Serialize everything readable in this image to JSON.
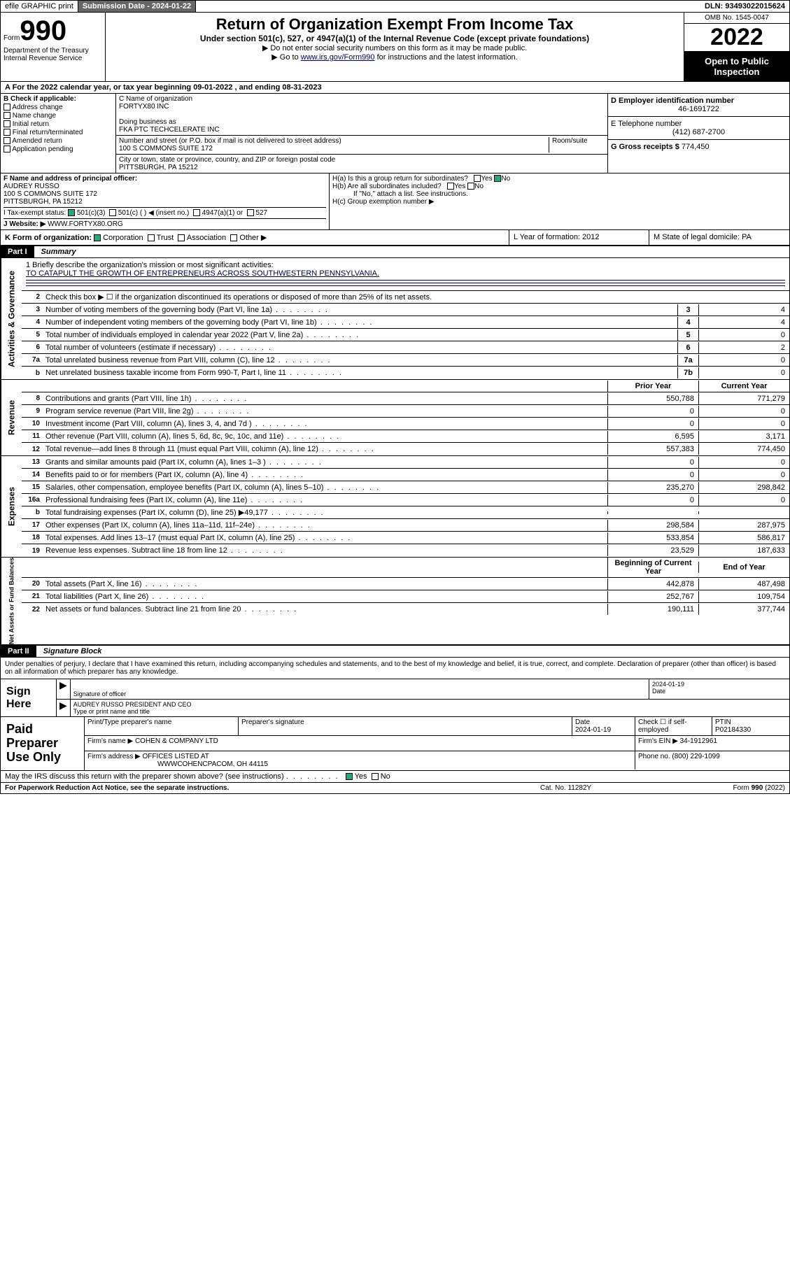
{
  "top": {
    "efile": "efile GRAPHIC print",
    "submission_label": "Submission Date - 2024-01-22",
    "dln": "DLN: 93493022015624"
  },
  "header": {
    "form_word": "Form",
    "form_num": "990",
    "dept": "Department of the Treasury Internal Revenue Service",
    "title": "Return of Organization Exempt From Income Tax",
    "sub1": "Under section 501(c), 527, or 4947(a)(1) of the Internal Revenue Code (except private foundations)",
    "sub2": "▶ Do not enter social security numbers on this form as it may be made public.",
    "sub3_pre": "▶ Go to ",
    "sub3_link": "www.irs.gov/Form990",
    "sub3_post": " for instructions and the latest information.",
    "omb": "OMB No. 1545-0047",
    "year": "2022",
    "open": "Open to Public Inspection"
  },
  "rowA": "A For the 2022 calendar year, or tax year beginning 09-01-2022    , and ending 08-31-2023",
  "secB": {
    "b_label": "B Check if applicable:",
    "opts": [
      "Address change",
      "Name change",
      "Initial return",
      "Final return/terminated",
      "Amended return",
      "Application pending"
    ],
    "c_label": "C Name of organization",
    "org_name": "FORTYX80 INC",
    "dba_label": "Doing business as",
    "dba": "FKA PTC TECHCELERATE INC",
    "addr_label": "Number and street (or P.O. box if mail is not delivered to street address)",
    "room_label": "Room/suite",
    "street": "100 S COMMONS SUITE 172",
    "city_label": "City or town, state or province, country, and ZIP or foreign postal code",
    "city": "PITTSBURGH, PA  15212",
    "d_label": "D Employer identification number",
    "ein": "46-1691722",
    "e_label": "E Telephone number",
    "phone": "(412) 687-2700",
    "g_label": "G Gross receipts $",
    "gross": "774,450"
  },
  "rowF": {
    "f_label": "F Name and address of principal officer:",
    "officer": "AUDREY RUSSO",
    "officer_addr1": "100 S COMMONS SUITE 172",
    "officer_addr2": "PITTSBURGH, PA  15212",
    "ha": "H(a)  Is this a group return for subordinates?",
    "ha_no": "No",
    "hb": "H(b)  Are all subordinates included?",
    "hb_note": "If \"No,\" attach a list. See instructions.",
    "hc": "H(c)  Group exemption number ▶"
  },
  "rowI": {
    "label": "I   Tax-exempt status:",
    "opt1": "501(c)(3)",
    "opt2": "501(c) (  ) ◀ (insert no.)",
    "opt3": "4947(a)(1) or",
    "opt4": "527"
  },
  "rowJ": {
    "label": "J   Website: ▶",
    "value": "WWW.FORTYX80.ORG"
  },
  "rowK": {
    "k_label": "K Form of organization:",
    "opts": [
      "Corporation",
      "Trust",
      "Association",
      "Other ▶"
    ],
    "l": "L Year of formation: 2012",
    "m": "M State of legal domicile: PA"
  },
  "partI": {
    "num": "Part I",
    "title": "Summary"
  },
  "mission": {
    "q": "1  Briefly describe the organization's mission or most significant activities:",
    "a": "TO CATAPULT THE GROWTH OF ENTREPRENEURS ACROSS SOUTHWESTERN PENNSYLVANIA."
  },
  "gov_lines": [
    {
      "n": "2",
      "t": "Check this box ▶ ☐  if the organization discontinued its operations or disposed of more than 25% of its net assets.",
      "box": "",
      "v": ""
    },
    {
      "n": "3",
      "t": "Number of voting members of the governing body (Part VI, line 1a)",
      "box": "3",
      "v": "4"
    },
    {
      "n": "4",
      "t": "Number of independent voting members of the governing body (Part VI, line 1b)",
      "box": "4",
      "v": "4"
    },
    {
      "n": "5",
      "t": "Total number of individuals employed in calendar year 2022 (Part V, line 2a)",
      "box": "5",
      "v": "0"
    },
    {
      "n": "6",
      "t": "Total number of volunteers (estimate if necessary)",
      "box": "6",
      "v": "2"
    },
    {
      "n": "7a",
      "t": "Total unrelated business revenue from Part VIII, column (C), line 12",
      "box": "7a",
      "v": "0"
    },
    {
      "n": "b",
      "t": "Net unrelated business taxable income from Form 990-T, Part I, line 11",
      "box": "7b",
      "v": "0"
    }
  ],
  "rev_hdr": {
    "prior": "Prior Year",
    "curr": "Current Year"
  },
  "rev_lines": [
    {
      "n": "8",
      "t": "Contributions and grants (Part VIII, line 1h)",
      "p": "550,788",
      "c": "771,279"
    },
    {
      "n": "9",
      "t": "Program service revenue (Part VIII, line 2g)",
      "p": "0",
      "c": "0"
    },
    {
      "n": "10",
      "t": "Investment income (Part VIII, column (A), lines 3, 4, and 7d )",
      "p": "0",
      "c": "0"
    },
    {
      "n": "11",
      "t": "Other revenue (Part VIII, column (A), lines 5, 6d, 8c, 9c, 10c, and 11e)",
      "p": "6,595",
      "c": "3,171"
    },
    {
      "n": "12",
      "t": "Total revenue—add lines 8 through 11 (must equal Part VIII, column (A), line 12)",
      "p": "557,383",
      "c": "774,450"
    }
  ],
  "exp_lines": [
    {
      "n": "13",
      "t": "Grants and similar amounts paid (Part IX, column (A), lines 1–3 )",
      "p": "0",
      "c": "0"
    },
    {
      "n": "14",
      "t": "Benefits paid to or for members (Part IX, column (A), line 4)",
      "p": "0",
      "c": "0"
    },
    {
      "n": "15",
      "t": "Salaries, other compensation, employee benefits (Part IX, column (A), lines 5–10)",
      "p": "235,270",
      "c": "298,842"
    },
    {
      "n": "16a",
      "t": "Professional fundraising fees (Part IX, column (A), line 11e)",
      "p": "0",
      "c": "0"
    },
    {
      "n": "b",
      "t": "Total fundraising expenses (Part IX, column (D), line 25) ▶49,177",
      "p": "",
      "c": ""
    },
    {
      "n": "17",
      "t": "Other expenses (Part IX, column (A), lines 11a–11d, 11f–24e)",
      "p": "298,584",
      "c": "287,975"
    },
    {
      "n": "18",
      "t": "Total expenses. Add lines 13–17 (must equal Part IX, column (A), line 25)",
      "p": "533,854",
      "c": "586,817"
    },
    {
      "n": "19",
      "t": "Revenue less expenses. Subtract line 18 from line 12",
      "p": "23,529",
      "c": "187,633"
    }
  ],
  "na_hdr": {
    "begin": "Beginning of Current Year",
    "end": "End of Year"
  },
  "na_lines": [
    {
      "n": "20",
      "t": "Total assets (Part X, line 16)",
      "p": "442,878",
      "c": "487,498"
    },
    {
      "n": "21",
      "t": "Total liabilities (Part X, line 26)",
      "p": "252,767",
      "c": "109,754"
    },
    {
      "n": "22",
      "t": "Net assets or fund balances. Subtract line 21 from line 20",
      "p": "190,111",
      "c": "377,744"
    }
  ],
  "side_labels": {
    "gov": "Activities & Governance",
    "rev": "Revenue",
    "exp": "Expenses",
    "na": "Net Assets or Fund Balances"
  },
  "partII": {
    "num": "Part II",
    "title": "Signature Block"
  },
  "sig_intro": "Under penalties of perjury, I declare that I have examined this return, including accompanying schedules and statements, and to the best of my knowledge and belief, it is true, correct, and complete. Declaration of preparer (other than officer) is based on all information of which preparer has any knowledge.",
  "sign_here": {
    "label": "Sign Here",
    "sig_of": "Signature of officer",
    "date": "2024-01-19",
    "date_label": "Date",
    "name": "AUDREY RUSSO  PRESIDENT AND CEO",
    "name_label": "Type or print name and title"
  },
  "paid": {
    "label": "Paid Preparer Use Only",
    "h1": "Print/Type preparer's name",
    "h2": "Preparer's signature",
    "h3": "Date",
    "h3v": "2024-01-19",
    "h4": "Check ☐ if self-employed",
    "h5": "PTIN",
    "ptin": "P02184330",
    "firm_label": "Firm's name    ▶",
    "firm": "COHEN & COMPANY LTD",
    "ein_label": "Firm's EIN ▶",
    "ein": "34-1912961",
    "addr_label": "Firm's address ▶",
    "addr1": "OFFICES LISTED AT",
    "addr2": "WWWCOHENCPACOM, OH  44115",
    "phone_label": "Phone no.",
    "phone": "(800) 229-1099"
  },
  "discuss": {
    "q": "May the IRS discuss this return with the preparer shown above? (see instructions)",
    "yes": "Yes",
    "no": "No"
  },
  "footer": {
    "pra": "For Paperwork Reduction Act Notice, see the separate instructions.",
    "cat": "Cat. No. 11282Y",
    "form": "Form 990 (2022)"
  }
}
